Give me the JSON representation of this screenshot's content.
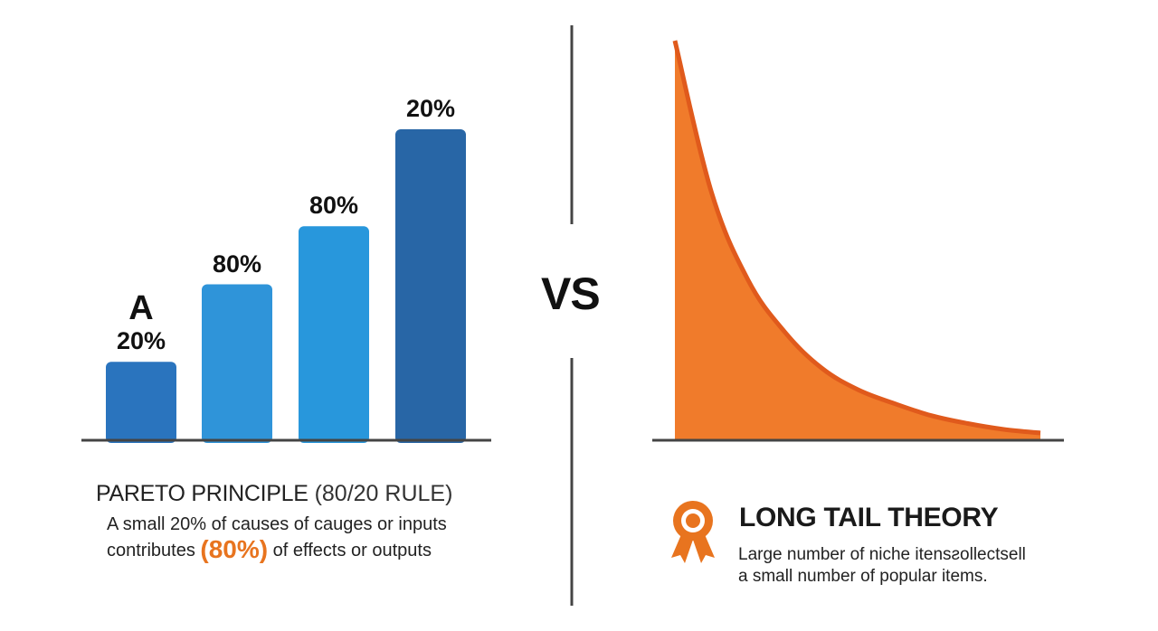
{
  "chart_data": [
    {
      "type": "bar",
      "categories": [
        "",
        "",
        "",
        ""
      ],
      "values": [
        20,
        40,
        55,
        80
      ],
      "data_labels": [
        "20%",
        "80%",
        "80%",
        "20%"
      ],
      "annotation": "A",
      "ylim": [
        0,
        80
      ],
      "colors": [
        "#2a74be",
        "#2f94d9",
        "#2897dc",
        "#2866a6"
      ],
      "title": "PARETO PRINCIPLE",
      "title_suffix": "(80/20 RULE)",
      "description_line1": "A small 20% of causes of cauges or inputs",
      "description_line2_before": "contributes",
      "description_highlight": "(80%)",
      "description_line2_after": "of effects or outputs",
      "highlight_color": "#e8741f"
    },
    {
      "type": "area",
      "x": [
        0,
        1,
        2,
        3,
        4,
        5,
        6,
        7,
        8,
        9,
        10
      ],
      "y": [
        100,
        62,
        40,
        27,
        18,
        12.5,
        9,
        6,
        4,
        2.5,
        1.6
      ],
      "ylim": [
        0,
        100
      ],
      "fill_color": "#f07b2b",
      "edge_color": "#e05a1c",
      "title": "LONG TAIL THEORY",
      "description_line1": "Large number of niche itensƨollectsell",
      "description_line2": "a small number of popular items."
    }
  ],
  "divider_label": "VS",
  "icons": {
    "long_tail": "award-ribbon-icon"
  }
}
